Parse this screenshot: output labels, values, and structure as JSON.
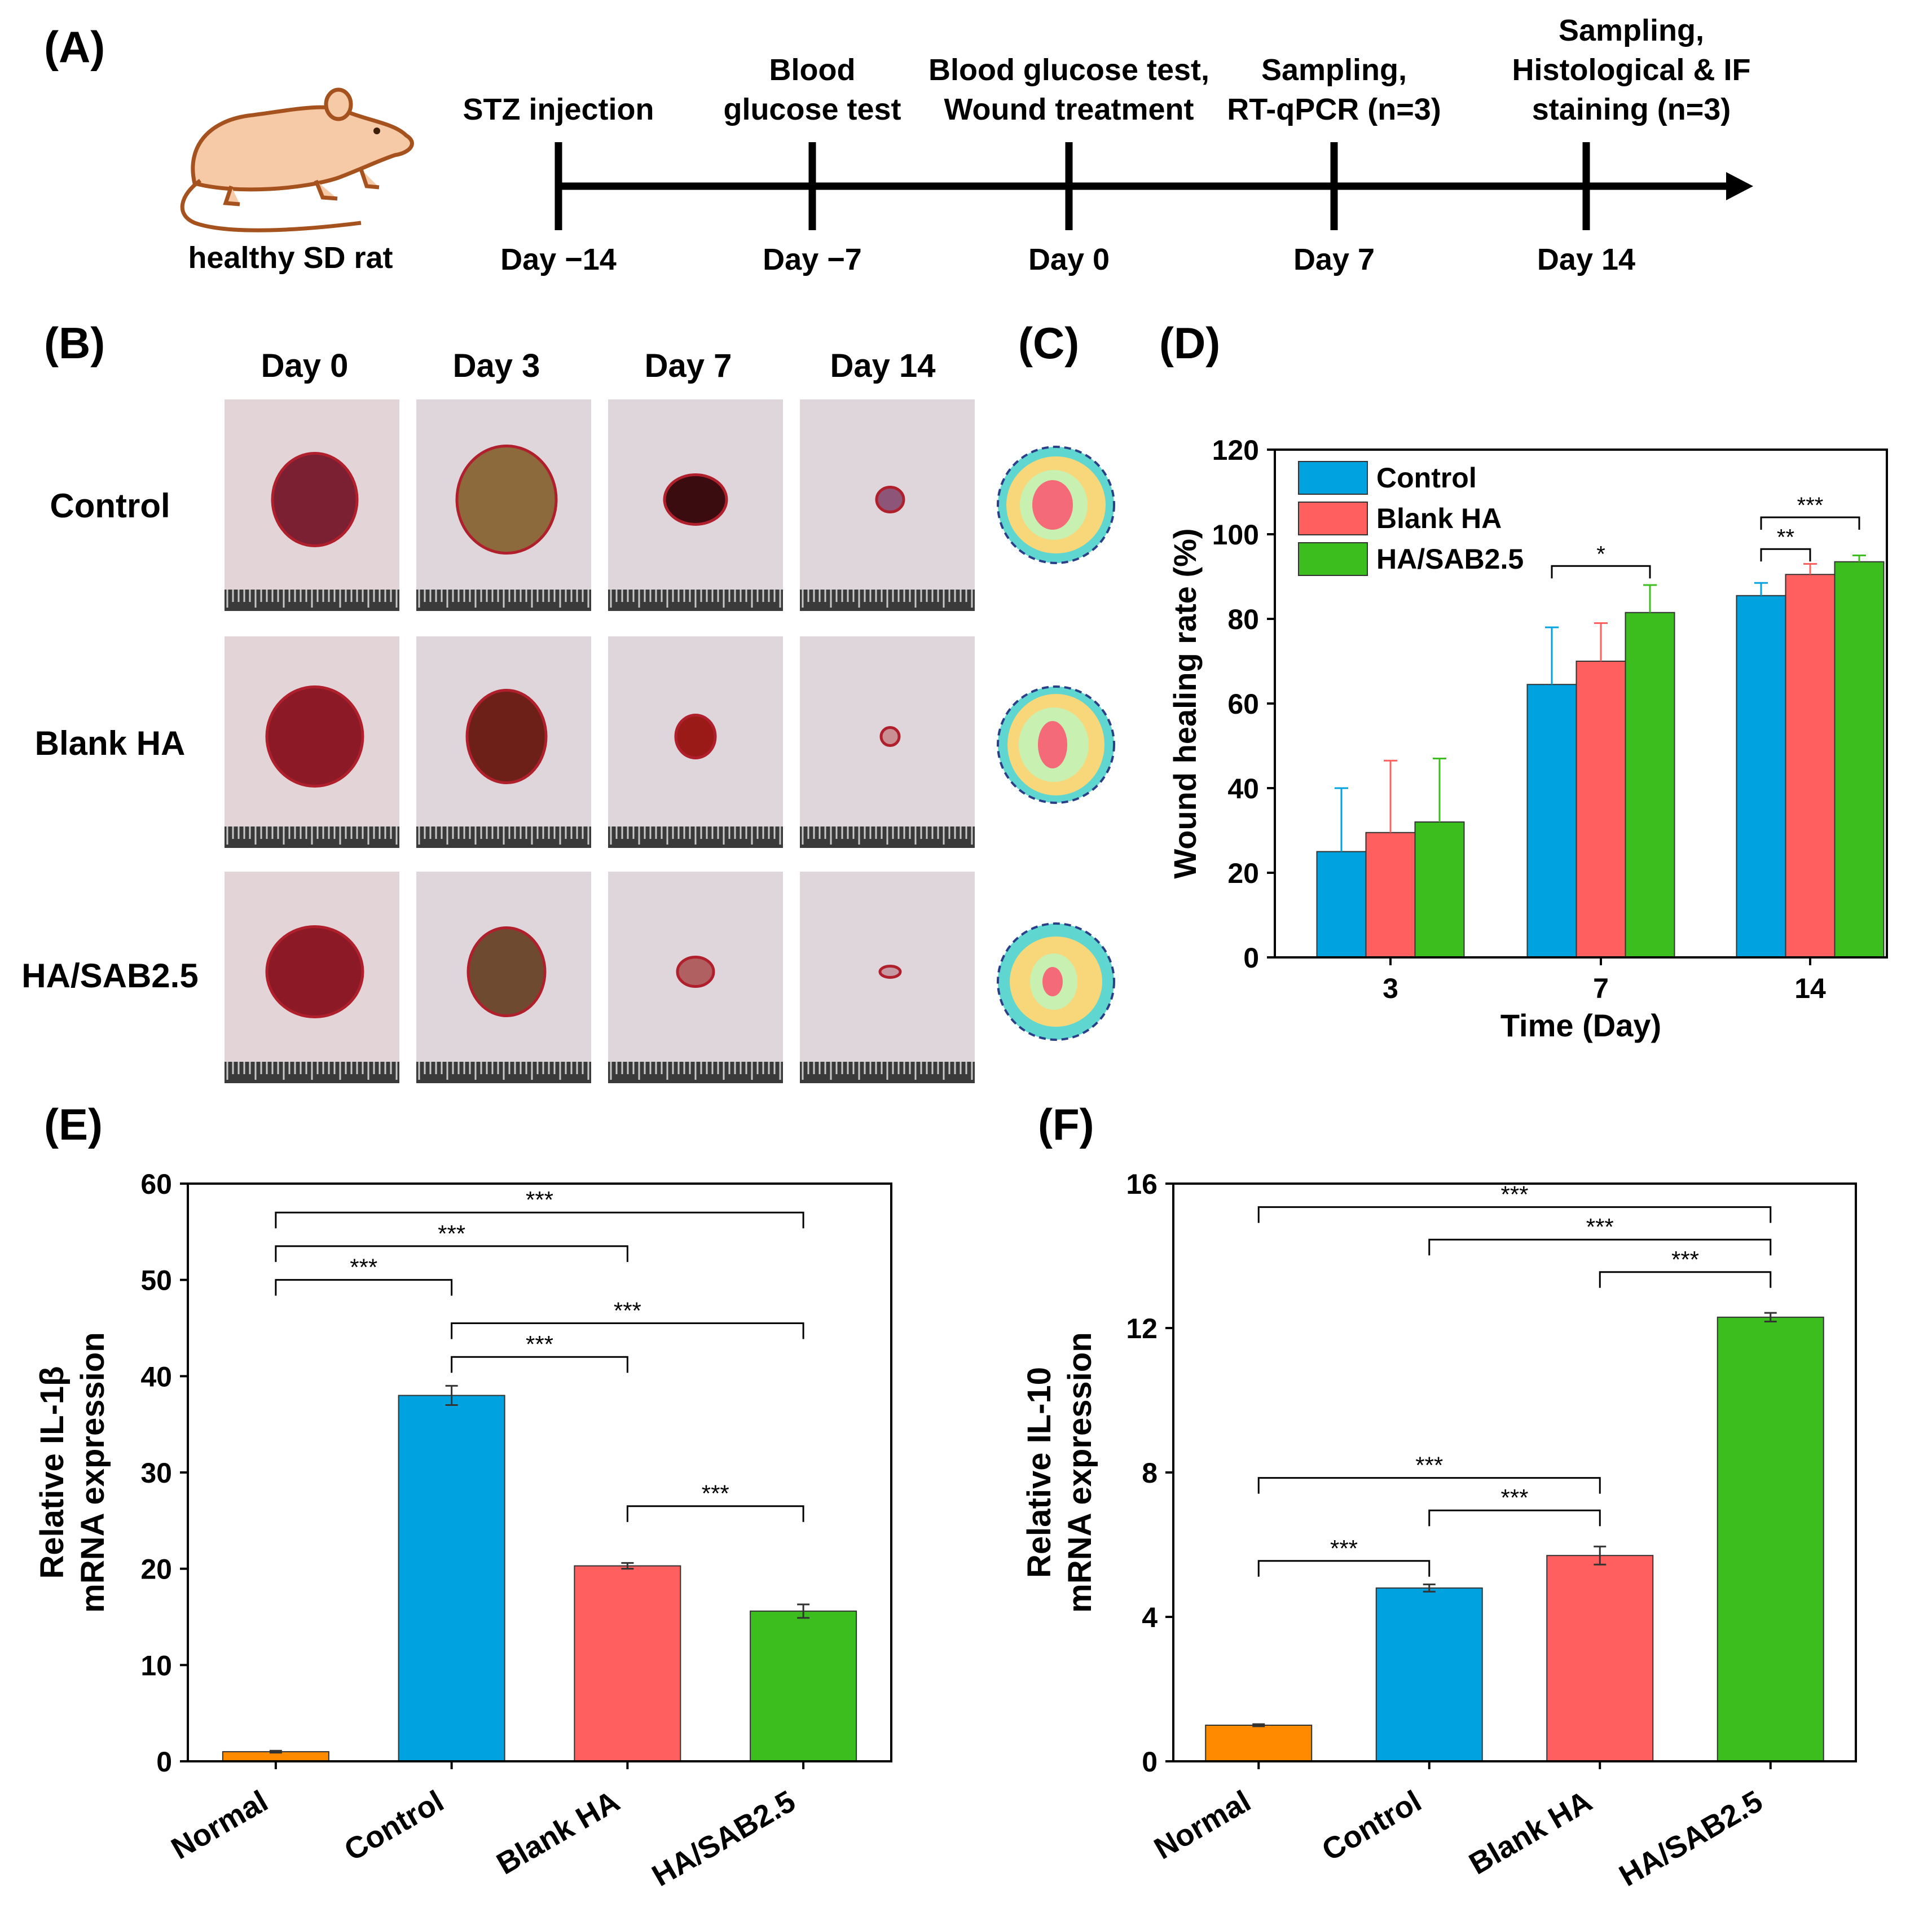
{
  "panels": {
    "A": "(A)",
    "B": "(B)",
    "C": "(C)",
    "D": "(D)",
    "E": "(E)",
    "F": "(F)"
  },
  "timeline": {
    "subject_label": "healthy SD rat",
    "events": [
      {
        "label_lines": [
          "STZ injection"
        ],
        "day": "Day −14"
      },
      {
        "label_lines": [
          "Blood",
          "glucose test"
        ],
        "day": "Day −7"
      },
      {
        "label_lines": [
          "Blood glucose test,",
          "Wound treatment"
        ],
        "day": "Day 0"
      },
      {
        "label_lines": [
          "Sampling,",
          "RT-qPCR (n=3)"
        ],
        "day": "Day 7"
      },
      {
        "label_lines": [
          "Sampling,",
          "Histological & IF",
          "staining (n=3)"
        ],
        "day": "Day 14"
      }
    ]
  },
  "photos": {
    "columns": [
      "Day 0",
      "Day 3",
      "Day 7",
      "Day 14"
    ],
    "rows": [
      "Control",
      "Blank HA",
      "HA/SAB2.5"
    ]
  },
  "colors": {
    "control": "#00A3E0",
    "blank_ha": "#FF5F5F",
    "ha_sab": "#3CBF1E",
    "normal": "#FF8A00",
    "skin": "#e6d9dd",
    "wound_dark": "#8b1a26",
    "ruler": "#3a3a3a",
    "trace_outer": "#5fd6cf",
    "trace_mid": "#f7d77a",
    "trace_inner": "#c8f0b0",
    "trace_core": "#f56a78"
  },
  "chart_data": [
    {
      "id": "D",
      "type": "bar",
      "title": "",
      "xlabel": "Time (Day)",
      "ylabel": "Wound healing rate (%)",
      "categories": [
        "3",
        "7",
        "14"
      ],
      "ylim": [
        0,
        120
      ],
      "yticks": [
        0,
        20,
        40,
        60,
        80,
        100,
        120
      ],
      "legend": "top-left",
      "series": [
        {
          "name": "Control",
          "values": [
            25,
            64.5,
            85.5
          ],
          "errors": [
            15,
            13.5,
            3
          ]
        },
        {
          "name": "Blank HA",
          "values": [
            29.5,
            70,
            90.5
          ],
          "errors": [
            17,
            9,
            2.5
          ]
        },
        {
          "name": "HA/SAB2.5",
          "values": [
            32,
            81.5,
            93.5
          ],
          "errors": [
            15,
            6.5,
            1.5
          ]
        }
      ],
      "significance": [
        {
          "group": "7",
          "from": "Control",
          "to": "HA/SAB2.5",
          "label": "*"
        },
        {
          "group": "14",
          "from": "Control",
          "to": "Blank HA",
          "label": "**"
        },
        {
          "group": "14",
          "from": "Control",
          "to": "HA/SAB2.5",
          "label": "***"
        }
      ]
    },
    {
      "id": "E",
      "type": "bar",
      "title": "",
      "xlabel": "",
      "ylabel_lines": [
        "Relative IL-1β",
        "mRNA expression"
      ],
      "categories": [
        "Normal",
        "Control",
        "Blank HA",
        "HA/SAB2.5"
      ],
      "values": [
        1,
        38,
        20.3,
        15.6
      ],
      "errors": [
        0.1,
        1,
        0.3,
        0.7
      ],
      "ylim": [
        0,
        60
      ],
      "yticks": [
        0,
        10,
        20,
        30,
        40,
        50,
        60
      ],
      "significance": [
        {
          "from": 0,
          "to": 3,
          "label": "***",
          "y": 57
        },
        {
          "from": 0,
          "to": 2,
          "label": "***",
          "y": 53.5
        },
        {
          "from": 0,
          "to": 1,
          "label": "***",
          "y": 50
        },
        {
          "from": 1,
          "to": 3,
          "label": "***",
          "y": 45.5
        },
        {
          "from": 1,
          "to": 2,
          "label": "***",
          "y": 42
        },
        {
          "from": 2,
          "to": 3,
          "label": "***",
          "y": 26.5
        }
      ]
    },
    {
      "id": "F",
      "type": "bar",
      "title": "",
      "xlabel": "",
      "ylabel_lines": [
        "Relative IL-10",
        "mRNA expression"
      ],
      "categories": [
        "Normal",
        "Control",
        "Blank HA",
        "HA/SAB2.5"
      ],
      "values": [
        1,
        4.8,
        5.7,
        12.3
      ],
      "errors": [
        0.03,
        0.1,
        0.25,
        0.12
      ],
      "ylim": [
        0,
        16
      ],
      "yticks": [
        0,
        4,
        8,
        12,
        16
      ],
      "significance": [
        {
          "from": 0,
          "to": 3,
          "label": "***",
          "y": 15.35
        },
        {
          "from": 1,
          "to": 3,
          "label": "***",
          "y": 14.45
        },
        {
          "from": 2,
          "to": 3,
          "label": "***",
          "y": 13.55
        },
        {
          "from": 0,
          "to": 2,
          "label": "***",
          "y": 7.85
        },
        {
          "from": 1,
          "to": 2,
          "label": "***",
          "y": 6.95
        },
        {
          "from": 0,
          "to": 1,
          "label": "***",
          "y": 5.55
        }
      ]
    }
  ]
}
